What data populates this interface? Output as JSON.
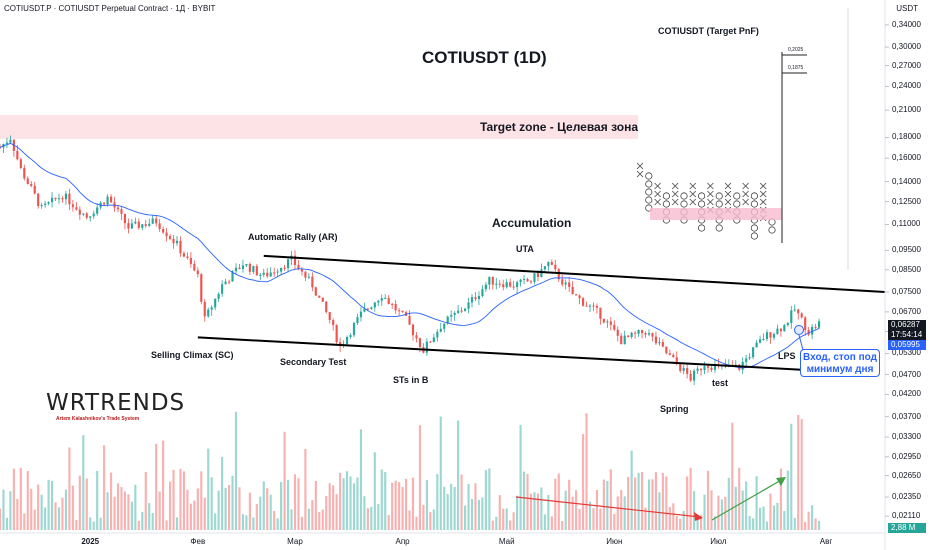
{
  "header": {
    "symbol_line": "COTIUSDT.P · COTIUSDT Perpetual Contract · 1Д · BYBIT",
    "currency": "USDT"
  },
  "annotations": {
    "main_title": "COTIUSDT (1D)",
    "pnf_title": "COTIUSDT (Target PnF)",
    "target_zone": "Target zone - Целевая зона",
    "accumulation": "Accumulation",
    "automatic_rally": "Automatic Rally (AR)",
    "uta": "UTA",
    "selling_climax": "Selling Climax (SC)",
    "secondary_test": "Secondary Test",
    "sts_in_b": "STs in B",
    "spring": "Spring",
    "test": "test",
    "lps": "LPS",
    "entry_note_line1": "Вход, стоп под",
    "entry_note_line2": "минимум дня",
    "pnf_level_high": "0,2025",
    "pnf_level_low": "0,1875"
  },
  "branding": {
    "logo": "WRTRENDS",
    "subtitle": "Artem Kalashnikov's Trade System"
  },
  "price_badges": {
    "last_price": "0,06287",
    "countdown": "17:54:14",
    "ma_value": "0,05995",
    "volume": "2,88 M"
  },
  "colors": {
    "up": "#26a69a",
    "down": "#ef5350",
    "ma": "#2962ff",
    "target_zone": "#fde2e6",
    "channel": "#000000"
  },
  "chart_data": {
    "type": "candlestick",
    "title": "COTIUSDT (1D)",
    "y_axis": {
      "scale": "log",
      "ticks": [
        "0,34000",
        "0,30000",
        "0,27000",
        "0,24000",
        "0,21000",
        "0,18000",
        "0,16000",
        "0,14000",
        "0,12500",
        "0,11000",
        "0,09500",
        "0,08500",
        "0,07500",
        "0,06700",
        "0,05995",
        "0,05300",
        "0,04700",
        "0,04200",
        "0,03700",
        "0,03300",
        "0,02950",
        "0,02650",
        "0,02350",
        "0,02110"
      ],
      "range": [
        0.0195,
        0.37
      ]
    },
    "x_axis": {
      "ticks": [
        {
          "label": "2025",
          "date": "2025-01-01",
          "bold": true
        },
        {
          "label": "Фев",
          "date": "2025-02-01"
        },
        {
          "label": "Мар",
          "date": "2025-03-01"
        },
        {
          "label": "Апр",
          "date": "2025-04-01"
        },
        {
          "label": "Май",
          "date": "2025-05-01"
        },
        {
          "label": "Июн",
          "date": "2025-06-01"
        },
        {
          "label": "Июл",
          "date": "2025-07-01"
        },
        {
          "label": "Авг",
          "date": "2025-08-01"
        }
      ],
      "range": [
        "2024-12-06",
        "2025-08-18"
      ]
    },
    "anchors": [
      {
        "date": "2024-12-06",
        "close": 0.17
      },
      {
        "date": "2024-12-09",
        "close": 0.18
      },
      {
        "date": "2024-12-12",
        "close": 0.15
      },
      {
        "date": "2024-12-18",
        "close": 0.12
      },
      {
        "date": "2024-12-24",
        "close": 0.13
      },
      {
        "date": "2024-12-31",
        "close": 0.115
      },
      {
        "date": "2025-01-06",
        "close": 0.128
      },
      {
        "date": "2025-01-12",
        "close": 0.108
      },
      {
        "date": "2025-01-20",
        "close": 0.112
      },
      {
        "date": "2025-01-26",
        "close": 0.098
      },
      {
        "date": "2025-02-01",
        "close": 0.082
      },
      {
        "date": "2025-02-03",
        "close": 0.064
      },
      {
        "date": "2025-02-08",
        "close": 0.078
      },
      {
        "date": "2025-02-14",
        "close": 0.088
      },
      {
        "date": "2025-02-20",
        "close": 0.082
      },
      {
        "date": "2025-02-28",
        "close": 0.09
      },
      {
        "date": "2025-03-06",
        "close": 0.078
      },
      {
        "date": "2025-03-11",
        "close": 0.064
      },
      {
        "date": "2025-03-14",
        "close": 0.055
      },
      {
        "date": "2025-03-20",
        "close": 0.066
      },
      {
        "date": "2025-03-26",
        "close": 0.074
      },
      {
        "date": "2025-04-02",
        "close": 0.064
      },
      {
        "date": "2025-04-07",
        "close": 0.054
      },
      {
        "date": "2025-04-12",
        "close": 0.062
      },
      {
        "date": "2025-04-20",
        "close": 0.07
      },
      {
        "date": "2025-04-26",
        "close": 0.08
      },
      {
        "date": "2025-05-03",
        "close": 0.078
      },
      {
        "date": "2025-05-08",
        "close": 0.08
      },
      {
        "date": "2025-05-13",
        "close": 0.088
      },
      {
        "date": "2025-05-20",
        "close": 0.074
      },
      {
        "date": "2025-05-28",
        "close": 0.066
      },
      {
        "date": "2025-06-03",
        "close": 0.057
      },
      {
        "date": "2025-06-10",
        "close": 0.06
      },
      {
        "date": "2025-06-17",
        "close": 0.052
      },
      {
        "date": "2025-06-23",
        "close": 0.046
      },
      {
        "date": "2025-06-27",
        "close": 0.05
      },
      {
        "date": "2025-07-01",
        "close": 0.049
      },
      {
        "date": "2025-07-07",
        "close": 0.049
      },
      {
        "date": "2025-07-14",
        "close": 0.058
      },
      {
        "date": "2025-07-20",
        "close": 0.062
      },
      {
        "date": "2025-07-23",
        "close": 0.068
      },
      {
        "date": "2025-07-27",
        "close": 0.06
      },
      {
        "date": "2025-07-30",
        "close": 0.06287
      }
    ],
    "channel": {
      "upper": [
        {
          "date": "2025-02-20",
          "price": 0.092
        },
        {
          "date": "2025-08-18",
          "price": 0.075
        }
      ],
      "lower": [
        {
          "date": "2025-02-01",
          "price": 0.058
        },
        {
          "date": "2025-08-10",
          "price": 0.0475
        }
      ]
    },
    "target_zone": {
      "low": 0.18,
      "high": 0.215
    },
    "volume": {
      "peak_label": "2,88 M"
    }
  }
}
